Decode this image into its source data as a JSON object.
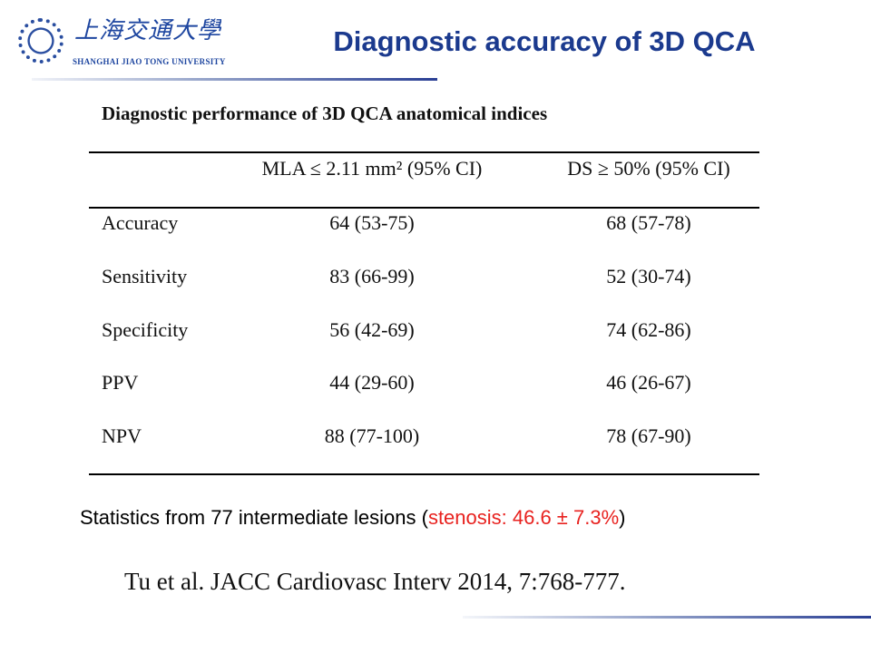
{
  "logo": {
    "chinese": "上海交通大學",
    "english": "SHANGHAI JIAO TONG UNIVERSITY"
  },
  "title": "Diagnostic accuracy of 3D QCA",
  "table": {
    "caption": "Diagnostic performance of 3D QCA anatomical indices",
    "headers": [
      "",
      "MLA ≤ 2.11 mm² (95% CI)",
      "DS ≥ 50% (95% CI)"
    ],
    "rows": [
      [
        "Accuracy",
        "64 (53-75)",
        "68 (57-78)"
      ],
      [
        "Sensitivity",
        "83 (66-99)",
        "52 (30-74)"
      ],
      [
        "Specificity",
        "56 (42-69)",
        "74 (62-86)"
      ],
      [
        "PPV",
        "44 (29-60)",
        "46 (26-67)"
      ],
      [
        "NPV",
        "88 (77-100)",
        "78 (67-90)"
      ]
    ]
  },
  "stats": {
    "prefix": "Statistics from 77 intermediate lesions (",
    "highlight": "stenosis: 46.6 ± 7.3%",
    "suffix": ")",
    "highlight_color": "#e8221f"
  },
  "citation": "Tu et al. JACC Cardiovasc Interv 2014, 7:768-777."
}
